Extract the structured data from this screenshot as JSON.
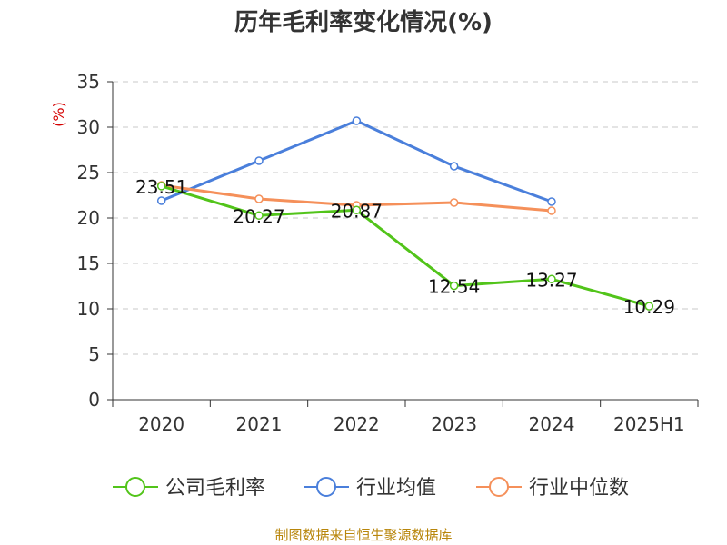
{
  "chart_data": {
    "type": "line",
    "title": "历年毛利率变化情况(%)",
    "ylabel": "(%)",
    "categories": [
      "2020",
      "2021",
      "2022",
      "2023",
      "2024",
      "2025H1"
    ],
    "ylim": [
      0,
      35
    ],
    "yticks": [
      0,
      5,
      10,
      15,
      20,
      25,
      30,
      35
    ],
    "grid": true,
    "legend_position": "bottom",
    "series": [
      {
        "name": "公司毛利率",
        "color": "#52c41a",
        "values": [
          23.51,
          20.27,
          20.87,
          12.54,
          13.27,
          10.29
        ],
        "show_labels": true
      },
      {
        "name": "行业均值",
        "color": "#4a7fdb",
        "values": [
          21.9,
          26.3,
          30.7,
          25.7,
          21.8,
          null
        ],
        "show_labels": false
      },
      {
        "name": "行业中位数",
        "color": "#f5905a",
        "values": [
          23.6,
          22.1,
          21.4,
          21.7,
          20.8,
          null
        ],
        "show_labels": false
      }
    ]
  },
  "source": "制图数据来自恒生聚源数据库"
}
